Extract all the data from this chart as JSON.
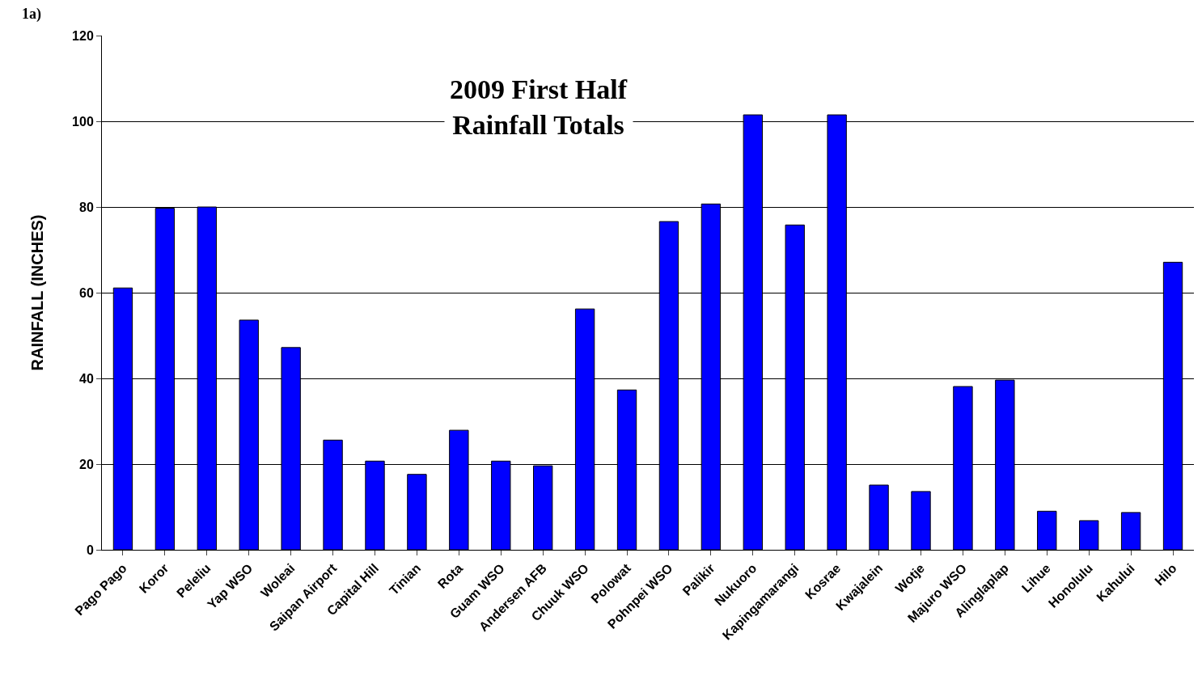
{
  "chart_data": {
    "type": "bar",
    "title": "2009 First Half\nRainfall Totals",
    "ylabel": "RAINFALL (INCHES)",
    "annotations": [
      "1a)"
    ],
    "categories": [
      "Pago Pago",
      "Koror",
      "Peleliu",
      "Yap WSO",
      "Woleai",
      "Saipan Airport",
      "Capital Hill",
      "Tinian",
      "Rota",
      "Guam WSO",
      "Andersen AFB",
      "Chuuk WSO",
      "Polowat",
      "Pohnpei WSO",
      "Palikir",
      "Nukuoro",
      "Kapingamarangi",
      "Kosrae",
      "Kwajalein",
      "Wotje",
      "Majuro WSO",
      "Alinglaplap",
      "Lihue",
      "Honolulu",
      "Kahului",
      "Hilo"
    ],
    "values": [
      61.1,
      79.7,
      80,
      53.6,
      47.2,
      25.6,
      20.7,
      17.6,
      27.9,
      20.7,
      19.6,
      56.2,
      37.3,
      76.6,
      80.7,
      101.5,
      75.8,
      101.5,
      15.1,
      13.6,
      38.1,
      39.6,
      9.0,
      6.8,
      8.7,
      67.1
    ],
    "color": "#0000ff",
    "ylim": [
      0,
      120
    ],
    "yticks": [
      0,
      20,
      40,
      60,
      80,
      100,
      120
    ],
    "grid": "y",
    "legend": false
  }
}
